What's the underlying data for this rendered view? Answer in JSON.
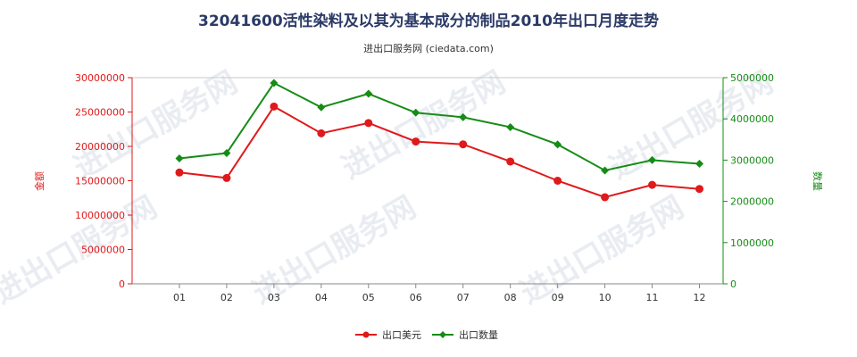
{
  "chart_data": {
    "type": "line",
    "title": "32041600活性染料及以其为基本成分的制品2010年出口月度走势",
    "subtitle": "进出口服务网 (ciedata.com)",
    "categories": [
      "01",
      "02",
      "03",
      "04",
      "05",
      "06",
      "07",
      "08",
      "09",
      "10",
      "11",
      "12"
    ],
    "y_left": {
      "label": "金额",
      "ylim": [
        0,
        30000000
      ],
      "ticks": [
        "0",
        "5000000",
        "10000000",
        "15000000",
        "20000000",
        "25000000",
        "30000000"
      ],
      "color": "#e0191a"
    },
    "y_right": {
      "label": "数量",
      "ylim": [
        0,
        5000000
      ],
      "ticks": [
        "0",
        "1000000",
        "2000000",
        "3000000",
        "4000000",
        "5000000"
      ],
      "color": "#168c16"
    },
    "series": [
      {
        "name": "出口美元",
        "axis": "left",
        "color": "#e0191a",
        "values": [
          16200000,
          15400000,
          25800000,
          21900000,
          23400000,
          20700000,
          20300000,
          17800000,
          15000000,
          12600000,
          14400000,
          13800000
        ]
      },
      {
        "name": "出口数量",
        "axis": "right",
        "color": "#168c16",
        "values": [
          3040000,
          3170000,
          4870000,
          4280000,
          4610000,
          4150000,
          4040000,
          3800000,
          3380000,
          2750000,
          3000000,
          2910000
        ]
      }
    ],
    "grid": false,
    "legend": "bottom-center"
  },
  "watermark": "进出口服务网"
}
